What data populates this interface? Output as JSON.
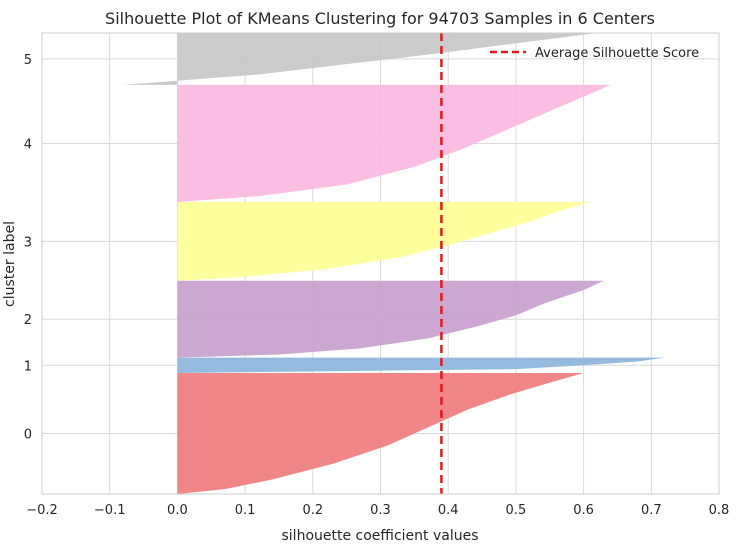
{
  "chart_data": {
    "type": "silhouette",
    "title": "Silhouette Plot of KMeans Clustering for 94703 Samples in 6 Centers",
    "xlabel": "silhouette coefficient values",
    "ylabel": "cluster label",
    "xlim": [
      -0.2,
      0.8
    ],
    "xticks": [
      -0.2,
      -0.1,
      0.0,
      0.1,
      0.2,
      0.3,
      0.4,
      0.5,
      0.6,
      0.7,
      0.8
    ],
    "xtick_labels": [
      "−0.2",
      "−0.1",
      "0.0",
      "0.1",
      "0.2",
      "0.3",
      "0.4",
      "0.5",
      "0.6",
      "0.7",
      "0.8"
    ],
    "ylim": [
      0,
      100
    ],
    "grid": true,
    "legend_position": "top-right",
    "average_silhouette_score": 0.39,
    "average_line_color": "#e31a1c",
    "legend_label": "Average Silhouette Score",
    "clusters": [
      {
        "label": "0",
        "color": "#f08080",
        "y_start": 0.0,
        "y_end": 31.5,
        "min_value": -0.04,
        "max_value": 0.6,
        "profile": [
          [
            0,
            0.6
          ],
          [
            0.08,
            0.55
          ],
          [
            0.18,
            0.49
          ],
          [
            0.3,
            0.43
          ],
          [
            0.45,
            0.37
          ],
          [
            0.6,
            0.31
          ],
          [
            0.75,
            0.23
          ],
          [
            0.88,
            0.14
          ],
          [
            0.96,
            0.07
          ],
          [
            1,
            0.0
          ]
        ]
      },
      {
        "label": "1",
        "color": "#8fb6dd",
        "y_start": 31.5,
        "y_end": 35.5,
        "min_value": 0.0,
        "max_value": 0.72,
        "profile": [
          [
            0,
            0.72
          ],
          [
            0.25,
            0.68
          ],
          [
            0.5,
            0.6
          ],
          [
            0.75,
            0.5
          ],
          [
            1,
            0.0
          ]
        ]
      },
      {
        "label": "2",
        "color": "#c8a2cf",
        "y_start": 35.5,
        "y_end": 55.5,
        "min_value": -0.05,
        "max_value": 0.63,
        "profile": [
          [
            0,
            0.63
          ],
          [
            0.12,
            0.6
          ],
          [
            0.3,
            0.54
          ],
          [
            0.45,
            0.5
          ],
          [
            0.6,
            0.44
          ],
          [
            0.75,
            0.37
          ],
          [
            0.88,
            0.27
          ],
          [
            0.96,
            0.15
          ],
          [
            1,
            0.0
          ]
        ]
      },
      {
        "label": "3",
        "color": "#ffff99",
        "y_start": 55.5,
        "y_end": 76.0,
        "min_value": -0.05,
        "max_value": 0.61,
        "profile": [
          [
            0,
            0.61
          ],
          [
            0.1,
            0.57
          ],
          [
            0.25,
            0.52
          ],
          [
            0.4,
            0.46
          ],
          [
            0.55,
            0.4
          ],
          [
            0.7,
            0.33
          ],
          [
            0.85,
            0.22
          ],
          [
            0.95,
            0.1
          ],
          [
            1,
            0.0
          ]
        ]
      },
      {
        "label": "4",
        "color": "#f9bbdf",
        "y_start": 76.0,
        "y_end": 106.5,
        "min_value": 0.0,
        "max_value": 0.64,
        "profile": [
          [
            0,
            0.64
          ],
          [
            0.1,
            0.6
          ],
          [
            0.25,
            0.54
          ],
          [
            0.4,
            0.48
          ],
          [
            0.55,
            0.42
          ],
          [
            0.7,
            0.35
          ],
          [
            0.85,
            0.25
          ],
          [
            0.95,
            0.12
          ],
          [
            1,
            0.0
          ]
        ]
      },
      {
        "label": "5",
        "color": "#c8c8c8",
        "y_start": 106.5,
        "y_end": 120.0,
        "min_value": -0.08,
        "max_value": 0.62,
        "profile": [
          [
            0,
            0.62
          ],
          [
            0.2,
            0.5
          ],
          [
            0.4,
            0.38
          ],
          [
            0.6,
            0.25
          ],
          [
            0.8,
            0.12
          ],
          [
            1,
            -0.08
          ]
        ]
      }
    ]
  }
}
